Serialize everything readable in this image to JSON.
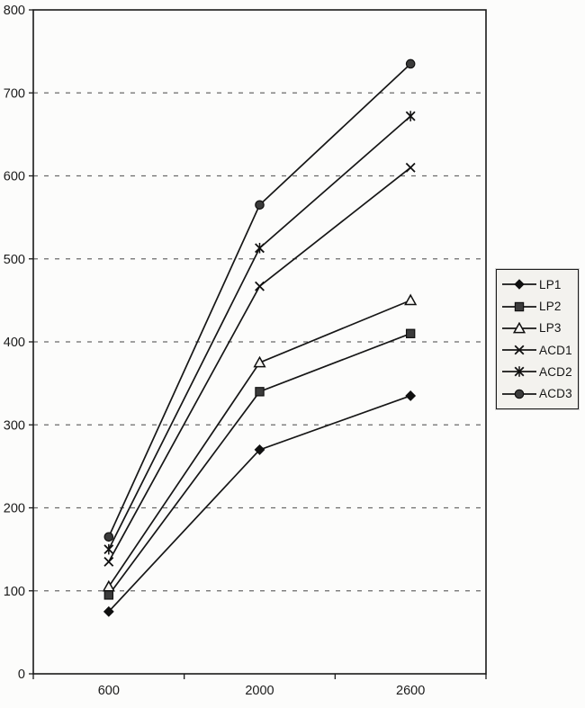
{
  "chart_data": {
    "type": "line",
    "title": "",
    "xlabel": "",
    "ylabel": "",
    "categories": [
      "600",
      "2000",
      "2600"
    ],
    "series": [
      {
        "name": "LP1",
        "marker": "diamond",
        "values": [
          75,
          270,
          335
        ]
      },
      {
        "name": "LP2",
        "marker": "square",
        "values": [
          95,
          340,
          410
        ]
      },
      {
        "name": "LP3",
        "marker": "triangle-open",
        "values": [
          105,
          375,
          450
        ]
      },
      {
        "name": "ACD1",
        "marker": "x",
        "values": [
          135,
          467,
          610
        ]
      },
      {
        "name": "ACD2",
        "marker": "asterisk",
        "values": [
          150,
          513,
          672
        ]
      },
      {
        "name": "ACD3",
        "marker": "circle",
        "values": [
          165,
          565,
          735
        ]
      }
    ],
    "ylim": [
      0,
      800
    ],
    "y_tick_step": 100,
    "y_tick_labels": [
      "0",
      "100",
      "200",
      "300",
      "400",
      "500",
      "600",
      "700",
      "800"
    ],
    "grid": "horizontal-dashed",
    "legend_position": "right",
    "legend_labels": [
      "LP1",
      "LP2",
      "LP3",
      "ACD1",
      "ACD2",
      "ACD3"
    ],
    "line_color": "#161616",
    "grid_color": "#6a6a6a",
    "axis_color": "#1a1a1a",
    "marker_fill_dark": "#3b3b3b",
    "background_color": "#fcfcfb",
    "legend_background": "#f3f2ee"
  }
}
